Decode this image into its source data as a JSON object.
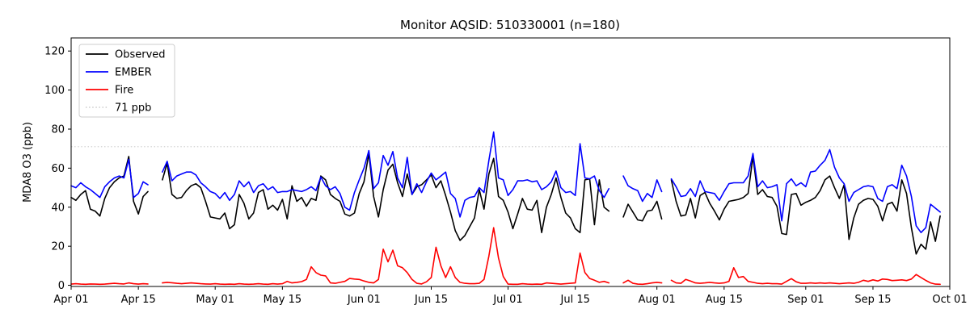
{
  "figure": {
    "title": "Monitor AQSID: 510330001 (n=180)",
    "ylabel": "MDA8 O3 (ppb)"
  },
  "chart_data": {
    "type": "line",
    "title": "Monitor AQSID: 510330001 (n=180)",
    "xlabel": "",
    "ylabel": "MDA8 O3 (ppb)",
    "grid": false,
    "x_unit": "daily values, day index 0 = Apr 01",
    "x_range_days": 183,
    "ylim": [
      -0.6,
      126.7
    ],
    "y_ticks": [
      0,
      20,
      40,
      60,
      80,
      100,
      120
    ],
    "x_ticks": [
      {
        "day": 0,
        "label": "Apr 01"
      },
      {
        "day": 14,
        "label": "Apr 15"
      },
      {
        "day": 30,
        "label": "May 01"
      },
      {
        "day": 44,
        "label": "May 15"
      },
      {
        "day": 61,
        "label": "Jun 01"
      },
      {
        "day": 75,
        "label": "Jun 15"
      },
      {
        "day": 91,
        "label": "Jul 01"
      },
      {
        "day": 105,
        "label": "Jul 15"
      },
      {
        "day": 122,
        "label": "Aug 01"
      },
      {
        "day": 136,
        "label": "Aug 15"
      },
      {
        "day": 153,
        "label": "Sep 01"
      },
      {
        "day": 167,
        "label": "Sep 15"
      },
      {
        "day": 183,
        "label": "Oct 01"
      }
    ],
    "threshold": {
      "value": 71,
      "label": "71 ppb",
      "color": "#d3d3d3",
      "style": "dotted"
    },
    "legend": {
      "position": "upper left",
      "entries": [
        "Observed",
        "EMBER",
        "Fire",
        "71 ppb"
      ]
    },
    "series": [
      {
        "name": "Observed",
        "color": "#000000",
        "values": [
          45,
          43.5,
          46.5,
          48.5,
          39,
          38,
          35.5,
          44.5,
          50,
          53,
          55,
          56,
          66,
          43,
          36.5,
          45.5,
          48,
          null,
          null,
          54,
          62.5,
          46.5,
          44.5,
          45,
          48.5,
          51,
          52,
          50,
          43,
          35,
          34.5,
          34,
          37,
          29,
          31,
          46.5,
          42,
          34,
          37,
          47.5,
          49,
          39,
          41,
          38.5,
          44,
          34,
          51,
          43,
          45,
          40.5,
          44.5,
          43.5,
          56,
          54,
          46.5,
          44.5,
          43,
          36.5,
          35.5,
          37,
          47,
          53,
          67.5,
          45.5,
          35,
          49,
          59,
          62,
          52.5,
          45.5,
          57,
          46.5,
          50.5,
          51.5,
          54,
          56.5,
          50,
          53.5,
          46,
          37.5,
          28,
          23,
          25.5,
          30,
          34.5,
          49,
          39,
          57,
          65,
          45.5,
          43.5,
          37.5,
          29,
          36.5,
          44.5,
          39,
          38.5,
          43.5,
          27,
          40,
          46.5,
          55,
          45,
          37,
          34.5,
          29,
          27,
          54,
          54.5,
          31,
          54,
          40,
          38,
          null,
          null,
          35,
          41.5,
          37.5,
          33.5,
          33,
          38,
          38.5,
          43,
          34,
          null,
          54,
          43,
          35.5,
          36,
          44.5,
          34.5,
          46,
          47.5,
          42,
          38,
          33.5,
          39,
          43,
          43.5,
          44,
          45,
          47,
          66,
          46.5,
          49,
          45.5,
          45,
          40.5,
          26.5,
          26,
          46.5,
          47,
          41,
          42.5,
          43.5,
          45,
          48.5,
          54,
          56,
          50,
          44.5,
          51.5,
          23.5,
          34.5,
          41.5,
          43.5,
          44.5,
          44,
          40.5,
          33,
          41.5,
          42.5,
          38,
          54,
          47,
          29.5,
          16,
          21,
          18.5,
          32.5,
          22.5,
          35.5
        ]
      },
      {
        "name": "EMBER",
        "color": "#0000ff",
        "values": [
          51,
          50,
          52.5,
          50.5,
          49,
          47,
          45,
          50.5,
          53,
          55,
          56,
          55,
          64.5,
          45,
          47,
          53,
          51.5,
          null,
          null,
          58,
          63.5,
          53.5,
          56,
          57,
          58,
          58,
          56.5,
          52.5,
          50.5,
          48,
          47,
          44.5,
          47.5,
          43.5,
          46.5,
          53.5,
          50.5,
          53,
          47.5,
          51,
          52,
          49,
          50.5,
          47.5,
          48,
          48,
          49,
          48.5,
          48,
          49,
          50.5,
          48.5,
          55.5,
          51,
          49,
          50.5,
          47,
          40,
          38.5,
          47.5,
          54,
          60,
          69,
          49.5,
          52.5,
          66.5,
          61.5,
          68.5,
          55,
          50,
          65.5,
          46.5,
          52,
          47.5,
          53,
          57.5,
          54,
          56,
          58,
          47,
          44.5,
          35,
          43.5,
          45,
          45.5,
          50,
          47.5,
          64,
          78.5,
          55,
          54,
          46,
          49,
          53.5,
          53.5,
          54,
          53,
          53.5,
          49,
          50.5,
          53,
          58.5,
          50,
          47.5,
          48,
          46,
          72.5,
          55,
          54.5,
          56,
          48.5,
          45,
          49.5,
          null,
          null,
          56,
          51,
          49.5,
          48.5,
          43,
          47,
          45,
          54,
          48,
          null,
          54.5,
          50.5,
          45.5,
          46,
          49.5,
          45.5,
          53.5,
          48,
          47.5,
          47,
          43.5,
          48,
          52,
          52.5,
          52.5,
          52.5,
          56,
          67.5,
          50.5,
          53.5,
          50,
          50.5,
          51.5,
          33,
          52,
          54.5,
          51,
          52.5,
          50.5,
          58,
          58.5,
          61.5,
          64,
          69.5,
          60.5,
          55,
          52,
          43,
          47.5,
          49,
          50.5,
          51,
          50.5,
          44.5,
          43,
          50.5,
          51.5,
          49.5,
          61.5,
          56,
          45.5,
          30.5,
          27,
          29.5,
          41.5,
          39.5,
          37.5
        ]
      },
      {
        "name": "Fire",
        "color": "#ff0000",
        "values": [
          0.6,
          0.8,
          0.6,
          0.5,
          0.7,
          0.6,
          0.5,
          0.6,
          0.8,
          1,
          0.8,
          0.7,
          1.2,
          0.8,
          0.6,
          0.8,
          0.7,
          null,
          null,
          1.2,
          1.5,
          1.3,
          1,
          0.8,
          1,
          1.2,
          1,
          0.8,
          0.7,
          0.6,
          0.8,
          0.6,
          0.5,
          0.6,
          0.5,
          0.8,
          0.6,
          0.5,
          0.6,
          0.8,
          0.6,
          0.5,
          0.8,
          0.6,
          0.8,
          2,
          1.2,
          1.5,
          1.9,
          3,
          9.5,
          6.5,
          5.2,
          4.8,
          1.2,
          1,
          1.5,
          2,
          3.5,
          3.2,
          3,
          2.2,
          1.5,
          1.2,
          3,
          18.5,
          12,
          18,
          10,
          9,
          6.5,
          3,
          1,
          0.7,
          1.8,
          4,
          19.5,
          10,
          4,
          9.5,
          4,
          1.5,
          1,
          0.8,
          0.8,
          1,
          3,
          15,
          29.5,
          14,
          4.5,
          0.6,
          0.5,
          0.5,
          0.8,
          0.6,
          0.5,
          0.6,
          0.5,
          1.2,
          1,
          0.8,
          0.6,
          0.8,
          1,
          1.2,
          16.5,
          6.5,
          3.5,
          2.6,
          1.5,
          2,
          1.2,
          null,
          null,
          1.2,
          2.6,
          1,
          0.6,
          0.5,
          0.8,
          1.2,
          1.5,
          1.2,
          null,
          2.6,
          1.2,
          1,
          3,
          2.2,
          1.2,
          1,
          1.2,
          1.5,
          1.2,
          1,
          1.2,
          2,
          9,
          4,
          4.5,
          2,
          1.5,
          1,
          0.8,
          1,
          0.8,
          0.8,
          0.6,
          2,
          3.4,
          1.8,
          1,
          1,
          1.2,
          1,
          1.2,
          1,
          1.2,
          1,
          0.8,
          1,
          1.2,
          1,
          1.5,
          2.6,
          2,
          2.8,
          2.2,
          3.2,
          3,
          2.4,
          2.6,
          2.8,
          2.4,
          3.2,
          5.5,
          4,
          2.5,
          1.2,
          0.6,
          0.5
        ]
      }
    ]
  }
}
